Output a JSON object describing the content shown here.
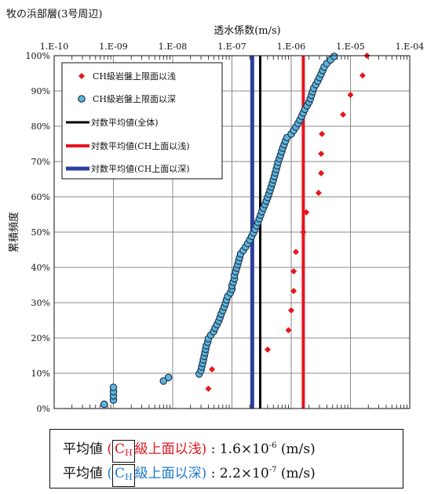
{
  "page_title": "牧の浜部層(3号周辺)",
  "colors": {
    "shallow": "#e8141e",
    "deep_fill": "#5fb6dc",
    "deep_stroke": "#1f3550",
    "mean_all": "#000000",
    "mean_shallow": "#e8141e",
    "mean_deep": "#2c3f9e",
    "grid": "#8a8a8a"
  },
  "chart_data": {
    "type": "scatter",
    "title": "牧の浜部層(3号周辺)",
    "xlabel": "透水係数(m/s)",
    "ylabel": "累積頻度",
    "x_scale": "log",
    "xlim": [
      1e-10,
      0.0001
    ],
    "ylim": [
      0,
      100
    ],
    "x_tick_labels": [
      "1.E-10",
      "1.E-09",
      "1.E-08",
      "1.E-07",
      "1.E-06",
      "1.E-05",
      "1.E-04"
    ],
    "y_tick_labels": [
      "0%",
      "10%",
      "20%",
      "30%",
      "40%",
      "50%",
      "60%",
      "70%",
      "80%",
      "90%",
      "100%"
    ],
    "grid": true,
    "legend_position": "top-left",
    "series": [
      {
        "name": "CH級岩盤上限面以浅",
        "marker": "diamond",
        "points": [
          [
            4e-08,
            5.6
          ],
          [
            4.6e-08,
            11.1
          ],
          [
            4e-07,
            16.7
          ],
          [
            9e-07,
            22.2
          ],
          [
            1e-06,
            27.8
          ],
          [
            1.1e-06,
            33.3
          ],
          [
            1.1e-06,
            38.9
          ],
          [
            1.2e-06,
            44.4
          ],
          [
            1.6e-06,
            50.0
          ],
          [
            1.8e-06,
            55.6
          ],
          [
            2.9e-06,
            61.1
          ],
          [
            3.2e-06,
            66.7
          ],
          [
            3.2e-06,
            72.2
          ],
          [
            3.3e-06,
            77.8
          ],
          [
            7.5e-06,
            83.3
          ],
          [
            1e-05,
            88.9
          ],
          [
            1.6e-05,
            94.4
          ],
          [
            1.9e-05,
            100.0
          ]
        ]
      },
      {
        "name": "CH級岩盤上限面以深",
        "marker": "circle",
        "points": [
          [
            7e-10,
            1.2
          ],
          [
            1e-09,
            2.4
          ],
          [
            1e-09,
            3.6
          ],
          [
            1e-09,
            4.8
          ],
          [
            1e-09,
            6.0
          ],
          [
            7e-09,
            7.8
          ],
          [
            8.5e-09,
            8.8
          ],
          [
            2.8e-08,
            9.8
          ],
          [
            3e-08,
            10.8
          ],
          [
            3.1e-08,
            11.8
          ],
          [
            3.2e-08,
            12.8
          ],
          [
            3.3e-08,
            13.8
          ],
          [
            3.4e-08,
            14.8
          ],
          [
            3.5e-08,
            15.8
          ],
          [
            3.6e-08,
            16.8
          ],
          [
            3.7e-08,
            17.8
          ],
          [
            3.9e-08,
            18.8
          ],
          [
            4e-08,
            19.8
          ],
          [
            4.4e-08,
            20.8
          ],
          [
            4.9e-08,
            21.8
          ],
          [
            5.2e-08,
            22.8
          ],
          [
            5.6e-08,
            23.8
          ],
          [
            6e-08,
            24.8
          ],
          [
            6.3e-08,
            25.8
          ],
          [
            6.6e-08,
            26.8
          ],
          [
            7e-08,
            27.8
          ],
          [
            7.4e-08,
            28.8
          ],
          [
            7.8e-08,
            29.8
          ],
          [
            8.1e-08,
            30.8
          ],
          [
            8.5e-08,
            31.8
          ],
          [
            9.4e-08,
            32.8
          ],
          [
            1e-07,
            33.8
          ],
          [
            1e-07,
            34.8
          ],
          [
            1.05e-07,
            35.8
          ],
          [
            1.1e-07,
            36.8
          ],
          [
            1.1e-07,
            37.8
          ],
          [
            1.15e-07,
            38.8
          ],
          [
            1.2e-07,
            39.8
          ],
          [
            1.25e-07,
            40.8
          ],
          [
            1.3e-07,
            41.8
          ],
          [
            1.35e-07,
            42.8
          ],
          [
            1.4e-07,
            43.8
          ],
          [
            1.55e-07,
            44.8
          ],
          [
            1.7e-07,
            45.8
          ],
          [
            1.85e-07,
            46.8
          ],
          [
            2e-07,
            47.8
          ],
          [
            2.15e-07,
            48.8
          ],
          [
            2.3e-07,
            49.8
          ],
          [
            2.45e-07,
            50.8
          ],
          [
            2.6e-07,
            51.8
          ],
          [
            2.75e-07,
            52.8
          ],
          [
            2.9e-07,
            53.8
          ],
          [
            3.05e-07,
            54.8
          ],
          [
            3.2e-07,
            55.8
          ],
          [
            3.4e-07,
            56.8
          ],
          [
            3.6e-07,
            57.8
          ],
          [
            3.8e-07,
            58.8
          ],
          [
            4e-07,
            59.8
          ],
          [
            4.2e-07,
            60.8
          ],
          [
            4.4e-07,
            61.8
          ],
          [
            4.6e-07,
            62.8
          ],
          [
            4.8e-07,
            63.8
          ],
          [
            5e-07,
            64.8
          ],
          [
            5.2e-07,
            65.8
          ],
          [
            5.4e-07,
            66.8
          ],
          [
            5.6e-07,
            67.8
          ],
          [
            5.8e-07,
            68.8
          ],
          [
            6e-07,
            69.8
          ],
          [
            6.3e-07,
            70.8
          ],
          [
            6.6e-07,
            71.8
          ],
          [
            6.9e-07,
            72.8
          ],
          [
            7.2e-07,
            73.8
          ],
          [
            7.6e-07,
            74.8
          ],
          [
            8e-07,
            75.8
          ],
          [
            8.5e-07,
            76.8
          ],
          [
            1e-06,
            77.8
          ],
          [
            1.1e-06,
            78.8
          ],
          [
            1.2e-06,
            79.8
          ],
          [
            1.3e-06,
            80.8
          ],
          [
            1.4e-06,
            81.8
          ],
          [
            1.5e-06,
            82.8
          ],
          [
            1.6e-06,
            83.8
          ],
          [
            1.7e-06,
            84.8
          ],
          [
            1.85e-06,
            85.8
          ],
          [
            2e-06,
            86.8
          ],
          [
            2.1e-06,
            87.8
          ],
          [
            2.2e-06,
            88.8
          ],
          [
            2.3e-06,
            89.8
          ],
          [
            2.4e-06,
            90.8
          ],
          [
            2.6e-06,
            91.8
          ],
          [
            2.8e-06,
            92.8
          ],
          [
            3e-06,
            93.8
          ],
          [
            3.2e-06,
            94.8
          ],
          [
            3.4e-06,
            95.8
          ],
          [
            3.6e-06,
            96.8
          ],
          [
            4e-06,
            97.8
          ],
          [
            4.6e-06,
            98.8
          ],
          [
            5.3e-06,
            99.8
          ]
        ]
      }
    ],
    "vertical_lines": [
      {
        "name": "対数平均値(全体)",
        "x": 3e-07,
        "color": "#000000",
        "width": 3
      },
      {
        "name": "対数平均値(CH上面以浅)",
        "x": 1.6e-06,
        "color": "#e8141e",
        "width": 4
      },
      {
        "name": "対数平均値(CH上面以深)",
        "x": 2.2e-07,
        "color": "#2c3f9e",
        "width": 5
      }
    ],
    "legend_entries": [
      "CH級岩盤上限面以浅",
      "CH級岩盤上限面以深",
      "対数平均値(全体)",
      "対数平均値(CH上面以浅)",
      "対数平均値(CH上面以深)"
    ]
  },
  "summary": {
    "row1": {
      "prefix": "平均値",
      "open_paren": "(",
      "c": "C",
      "h": "H",
      "text": "級上面以浅)",
      "colon": ":",
      "value": "1.6×10",
      "exp": "-6",
      "unit": "(m/s)"
    },
    "row2": {
      "prefix": "平均値",
      "open_paren": "(",
      "c": "C",
      "h": "H",
      "text": "級上面以深)",
      "colon": ":",
      "value": "2.2×10",
      "exp": "-7",
      "unit": "(m/s)"
    }
  }
}
